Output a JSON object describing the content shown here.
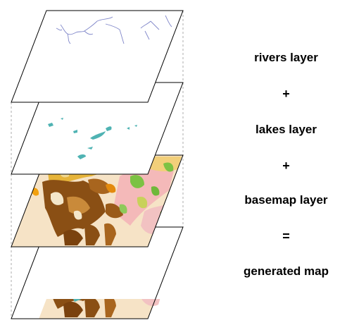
{
  "labels": {
    "rivers": "rivers layer",
    "plus1": "+",
    "lakes": "lakes layer",
    "plus2": "+",
    "basemap": "basemap layer",
    "equals": "=",
    "generated": "generated map"
  },
  "layers": [
    "rivers",
    "lakes",
    "basemap",
    "generated"
  ],
  "colors": {
    "outline": "#000000",
    "guide": "#9a9a9a",
    "river": "#7f86c9",
    "lake": "#4fb3b3",
    "land_light": "#f4d9b5",
    "land_ochre": "#d9a520",
    "land_orange": "#f2a10f",
    "land_brown": "#8a4f14",
    "land_tan": "#c98a3a",
    "veg_green": "#7cc243",
    "veg_yellow": "#c8d15a",
    "pink": "#f4b9b9"
  }
}
